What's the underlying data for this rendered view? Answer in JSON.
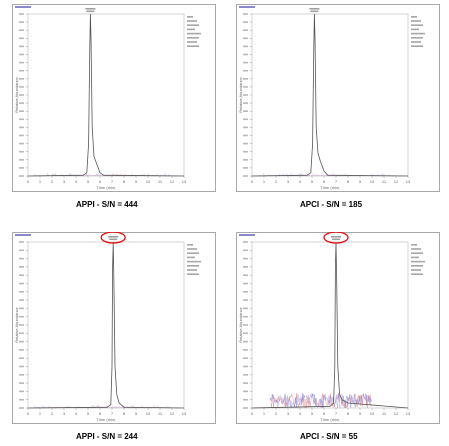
{
  "colors": {
    "trace": "#555555",
    "noise_red": "#d06060",
    "noise_blue": "#6a6ad8",
    "highlight_circle": "#e01010",
    "frame": "#a8a8a8",
    "grid": "#dcdcdc",
    "header_text": "#3a3aa8"
  },
  "chart_data": [
    {
      "type": "line",
      "caption": "APPI - S/N = 444",
      "xlabel": "Time (min)",
      "ylabel": "Relative Abundance",
      "xlim": [
        0,
        13
      ],
      "ylim": [
        0,
        100
      ],
      "peak_time": 5.2,
      "highlighted": false,
      "noise": "low",
      "series": [
        {
          "x": [
            0,
            4.6,
            4.9,
            5.05,
            5.15,
            5.2,
            5.25,
            5.35,
            5.5,
            5.7,
            6.0,
            6.3,
            13
          ],
          "y": [
            0,
            0.5,
            2,
            20,
            80,
            100,
            85,
            30,
            12,
            8,
            2,
            0.5,
            0
          ]
        }
      ]
    },
    {
      "type": "line",
      "caption": "APCI - S/N = 185",
      "xlabel": "Time (min)",
      "ylabel": "Relative Abundance",
      "xlim": [
        0,
        13
      ],
      "ylim": [
        0,
        100
      ],
      "peak_time": 5.2,
      "highlighted": false,
      "noise": "low",
      "series": [
        {
          "x": [
            0,
            4.6,
            4.9,
            5.05,
            5.15,
            5.2,
            5.25,
            5.35,
            5.5,
            5.7,
            6.0,
            6.3,
            13
          ],
          "y": [
            0,
            0.5,
            2,
            20,
            80,
            100,
            85,
            30,
            14,
            9,
            3,
            0.5,
            0
          ]
        }
      ]
    },
    {
      "type": "line",
      "caption": "APPI - S/N = 244",
      "xlabel": "Time (min)",
      "ylabel": "Relative Abundance",
      "xlim": [
        0,
        13
      ],
      "ylim": [
        0,
        100
      ],
      "peak_time": 7.1,
      "highlighted": true,
      "noise": "low",
      "series": [
        {
          "x": [
            0,
            6.6,
            6.9,
            7.0,
            7.05,
            7.1,
            7.15,
            7.25,
            7.4,
            7.6,
            8.0,
            13
          ],
          "y": [
            0,
            0.5,
            2,
            25,
            85,
            100,
            80,
            25,
            8,
            3,
            0.5,
            0
          ]
        }
      ]
    },
    {
      "type": "line",
      "caption": "APCI - S/N = 55",
      "xlabel": "Time (min)",
      "ylabel": "Relative Abundance",
      "xlim": [
        0,
        13
      ],
      "ylim": [
        0,
        100
      ],
      "peak_time": 7.0,
      "highlighted": true,
      "noise": "high",
      "series": [
        {
          "x": [
            0,
            6.5,
            6.8,
            6.9,
            6.95,
            7.0,
            7.05,
            7.15,
            7.3,
            7.5,
            8.0,
            13
          ],
          "y": [
            0,
            1,
            3,
            25,
            85,
            100,
            80,
            25,
            8,
            5,
            3,
            0
          ]
        }
      ]
    }
  ],
  "figure": {
    "captions": [
      "APPI - S/N = 444",
      "APCI - S/N = 185",
      "APPI - S/N = 244",
      "APCI - S/N = 55"
    ]
  }
}
